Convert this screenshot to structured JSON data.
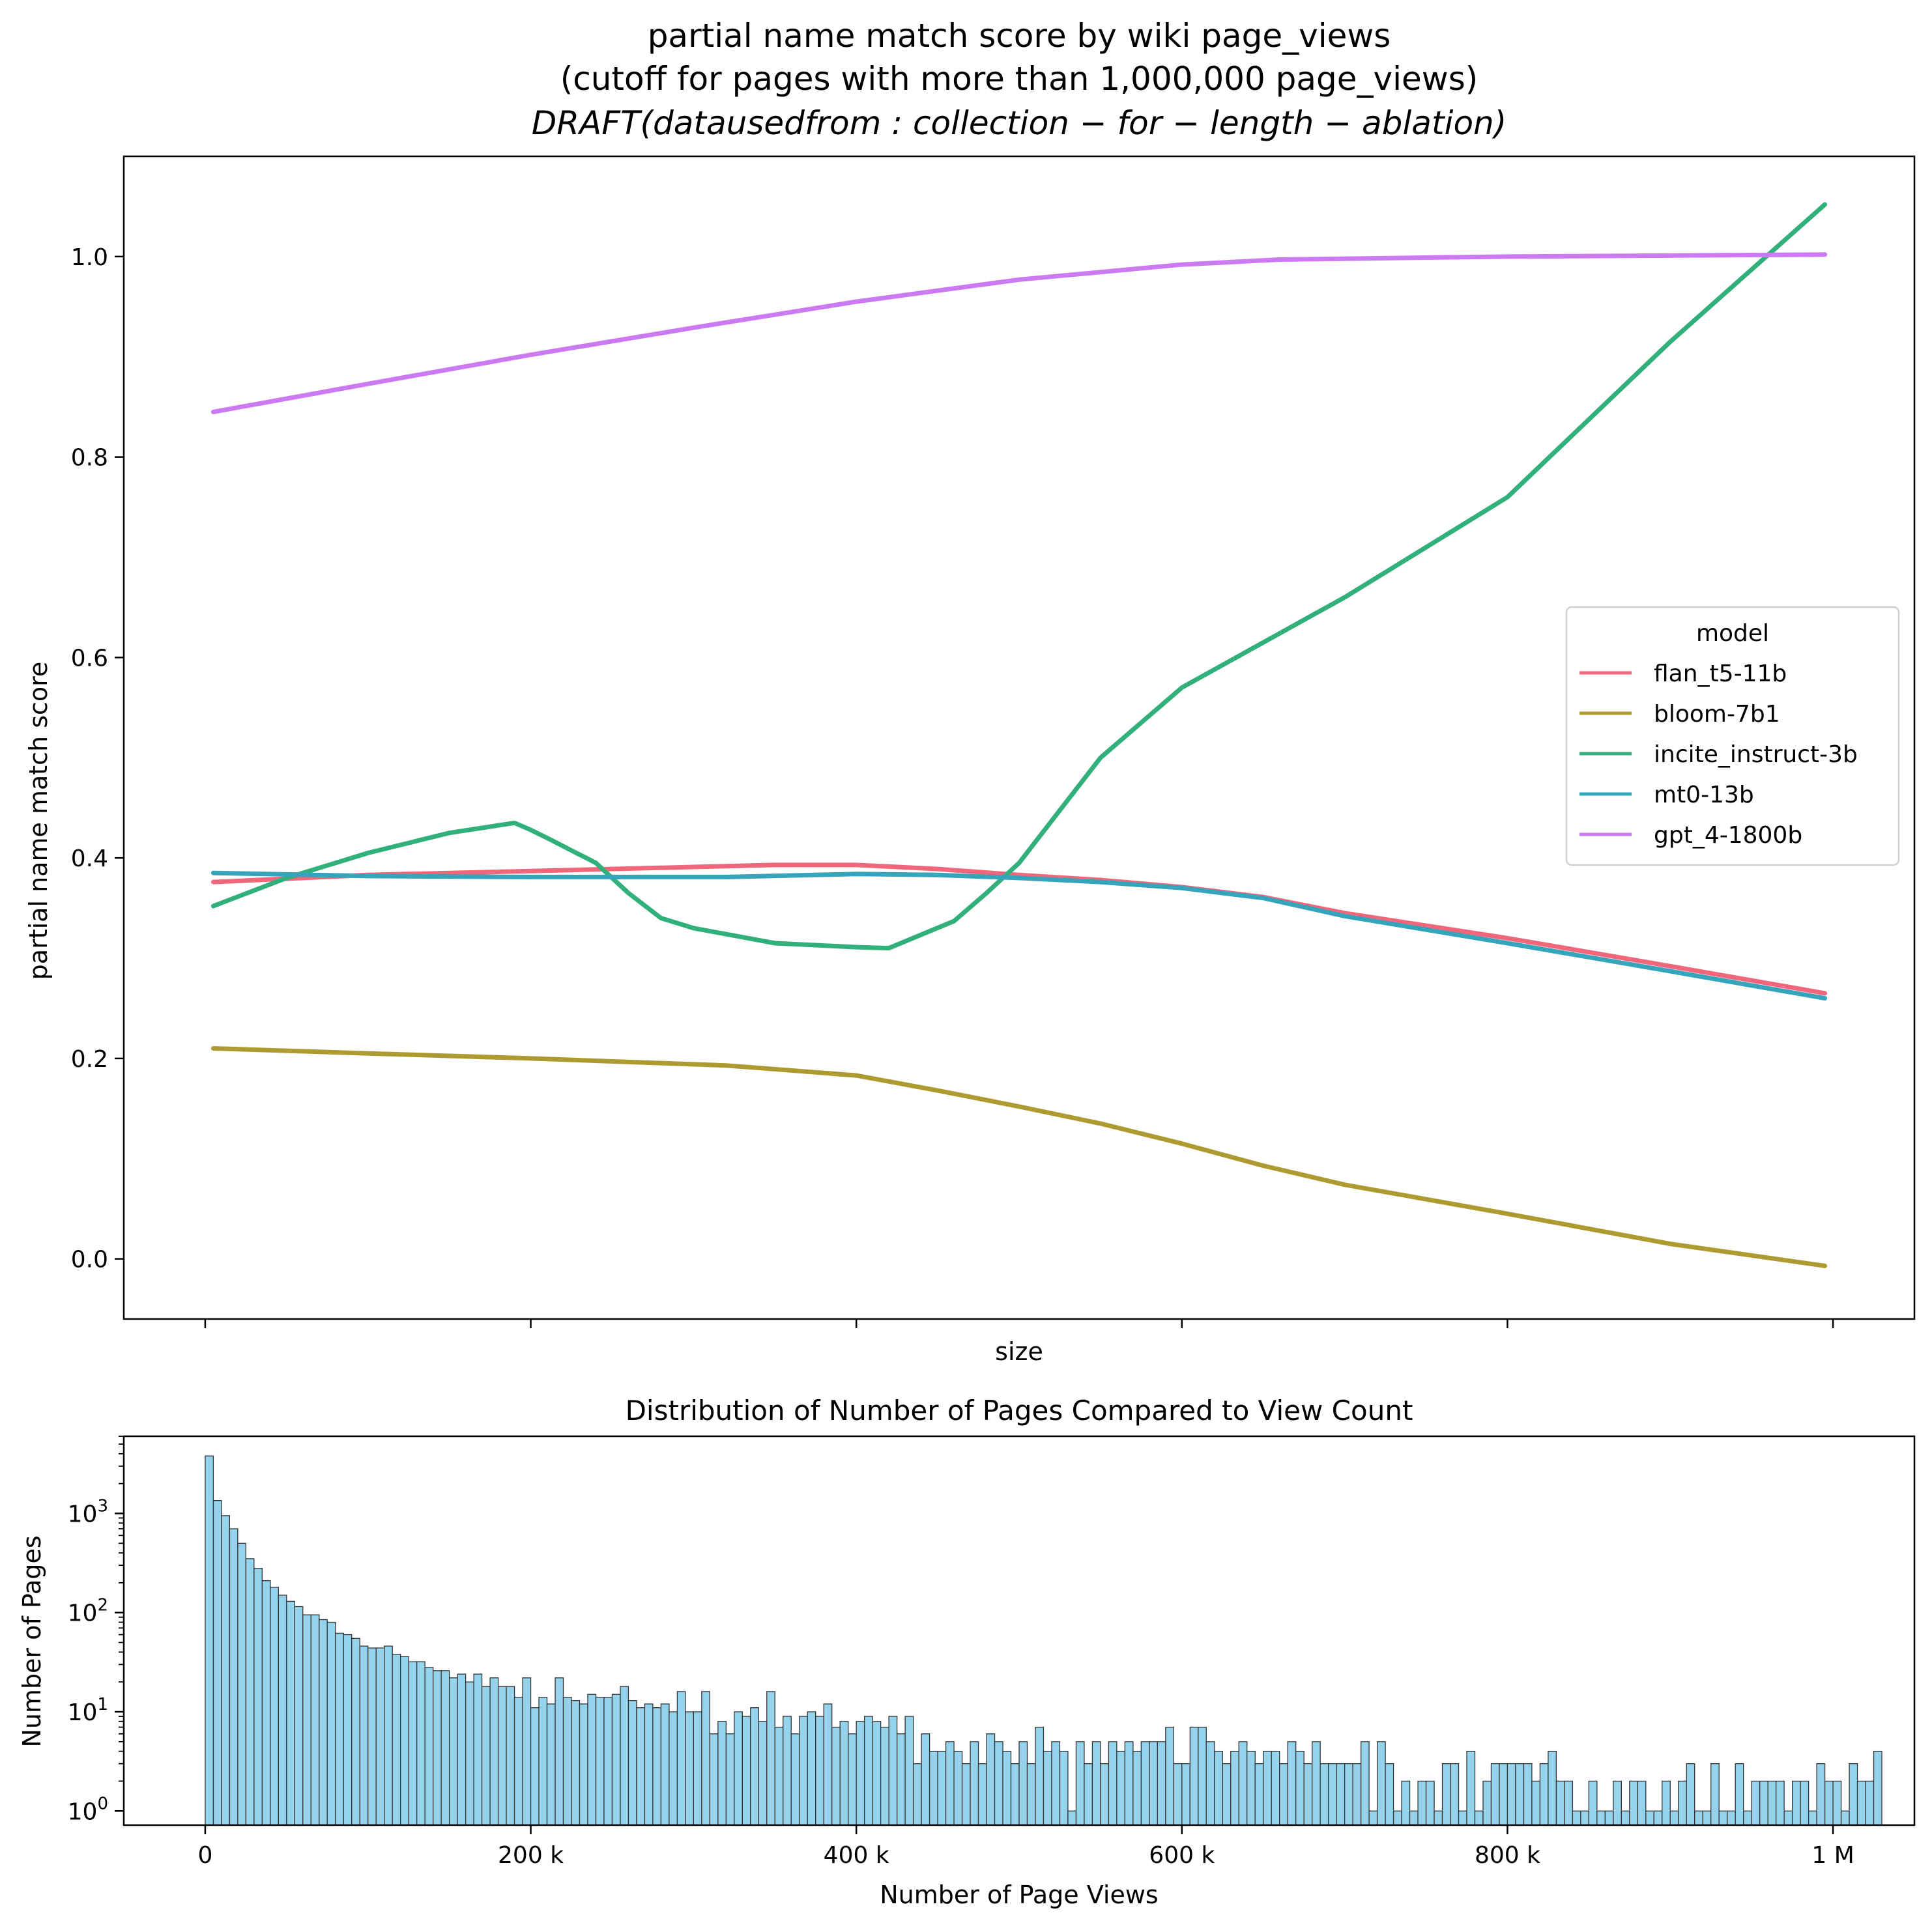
{
  "chart_data": [
    {
      "type": "line",
      "title_lines": [
        "partial name match score by wiki page_views",
        "(cutoff for pages with more than 1,000,000 page_views)",
        "DRAFT(datausedfrom : collection − for − length − ablation)"
      ],
      "xlabel": "size",
      "ylabel": "partial name match score",
      "xlim": [
        -50000,
        1050000
      ],
      "ylim": [
        -0.06,
        1.1
      ],
      "yticks": [
        0.0,
        0.2,
        0.4,
        0.6,
        0.8,
        1.0
      ],
      "ytick_labels": [
        "0.0",
        "0.2",
        "0.4",
        "0.6",
        "0.8",
        "1.0"
      ],
      "xticks": [
        0,
        200000,
        400000,
        600000,
        800000,
        1000000
      ],
      "grid": false,
      "legend": {
        "title": "model",
        "placement": "center-right"
      },
      "series": [
        {
          "name": "flan_t5-11b",
          "color": "#f0677c",
          "x": [
            5000,
            100000,
            200000,
            300000,
            350000,
            400000,
            450000,
            500000,
            550000,
            600000,
            650000,
            700000,
            800000,
            900000,
            995000
          ],
          "y": [
            0.376,
            0.383,
            0.387,
            0.391,
            0.393,
            0.393,
            0.389,
            0.383,
            0.378,
            0.371,
            0.361,
            0.345,
            0.32,
            0.292,
            0.265
          ]
        },
        {
          "name": "bloom-7b1",
          "color": "#ad9b32",
          "x": [
            5000,
            100000,
            200000,
            320000,
            400000,
            450000,
            500000,
            550000,
            600000,
            650000,
            700000,
            800000,
            900000,
            995000
          ],
          "y": [
            0.21,
            0.205,
            0.2,
            0.193,
            0.183,
            0.168,
            0.152,
            0.135,
            0.115,
            0.093,
            0.074,
            0.045,
            0.015,
            -0.007
          ]
        },
        {
          "name": "incite_instruct-3b",
          "color": "#32b07c",
          "x": [
            5000,
            50000,
            100000,
            150000,
            190000,
            200000,
            210000,
            240000,
            260000,
            280000,
            300000,
            350000,
            400000,
            420000,
            460000,
            480000,
            500000,
            550000,
            600000,
            650000,
            700000,
            800000,
            900000,
            995000
          ],
          "y": [
            0.352,
            0.38,
            0.405,
            0.425,
            0.435,
            0.428,
            0.42,
            0.395,
            0.365,
            0.34,
            0.33,
            0.315,
            0.311,
            0.31,
            0.337,
            0.365,
            0.395,
            0.5,
            0.57,
            0.615,
            0.66,
            0.76,
            0.915,
            1.052
          ]
        },
        {
          "name": "mt0-13b",
          "color": "#36a4bb",
          "x": [
            5000,
            100000,
            200000,
            320000,
            400000,
            450000,
            500000,
            550000,
            600000,
            650000,
            700000,
            800000,
            900000,
            995000
          ],
          "y": [
            0.385,
            0.382,
            0.381,
            0.381,
            0.384,
            0.383,
            0.38,
            0.376,
            0.37,
            0.36,
            0.342,
            0.315,
            0.287,
            0.26
          ]
        },
        {
          "name": "gpt_4-1800b",
          "color": "#cb7af2",
          "x": [
            5000,
            100000,
            200000,
            300000,
            400000,
            500000,
            600000,
            660000,
            800000,
            995000
          ],
          "y": [
            0.845,
            0.873,
            0.902,
            0.929,
            0.955,
            0.977,
            0.992,
            0.997,
            1.0,
            1.002
          ]
        }
      ]
    },
    {
      "type": "bar",
      "title": "Distribution of Number of Pages Compared to View Count",
      "xlabel": "Number of Page Views",
      "ylabel": "Number of Pages",
      "yscale": "log",
      "ylim": [
        0.72,
        6000
      ],
      "xlim": [
        -50000,
        1050000
      ],
      "xticks": [
        0,
        200000,
        400000,
        600000,
        800000,
        1000000
      ],
      "xtick_labels": [
        "0",
        "200 k",
        "400 k",
        "600 k",
        "800 k",
        "1 M"
      ],
      "yticks": [
        1,
        10,
        100,
        1000
      ],
      "bar_color": "#95d3ec",
      "bin_width": 5000,
      "bin_start": 0,
      "counts": [
        3800,
        1350,
        950,
        700,
        500,
        350,
        280,
        210,
        180,
        150,
        130,
        115,
        95,
        95,
        85,
        80,
        62,
        60,
        55,
        46,
        44,
        44,
        46,
        38,
        36,
        32,
        32,
        28,
        26,
        26,
        22,
        24,
        20,
        24,
        18,
        22,
        18,
        18,
        14,
        22,
        11,
        14,
        12,
        22,
        14,
        13,
        12,
        15,
        14,
        14,
        15,
        18,
        13,
        11,
        12,
        11,
        12,
        10,
        16,
        10,
        10,
        16,
        6,
        8,
        6,
        10,
        9,
        11,
        8,
        16,
        7,
        9,
        6,
        9,
        10,
        9,
        12,
        7,
        8,
        6,
        8,
        9,
        8,
        7,
        9,
        6,
        9,
        3,
        6,
        4,
        4,
        5,
        4,
        3,
        5,
        3,
        6,
        5,
        4,
        3,
        5,
        3,
        7,
        4,
        5,
        4,
        1,
        5,
        3,
        5,
        3,
        5,
        4,
        5,
        4,
        5,
        5,
        5,
        7,
        3,
        3,
        7,
        7,
        5,
        4,
        3,
        4,
        5,
        4,
        3,
        4,
        4,
        3,
        5,
        4,
        3,
        5,
        3,
        3,
        3,
        3,
        3,
        5,
        1,
        5,
        3,
        1,
        2,
        1,
        2,
        2,
        1,
        3,
        3,
        1,
        4,
        1,
        2,
        3,
        3,
        3,
        3,
        3,
        2,
        3,
        4,
        2,
        2,
        1,
        1,
        2,
        1,
        1,
        2,
        1,
        2,
        2,
        1,
        1,
        2,
        1,
        2,
        3,
        1,
        1,
        3,
        1,
        1,
        3,
        1,
        2,
        2,
        2,
        2,
        1,
        2,
        2,
        1,
        3,
        2,
        2,
        1,
        3,
        2,
        2,
        4
      ]
    }
  ]
}
